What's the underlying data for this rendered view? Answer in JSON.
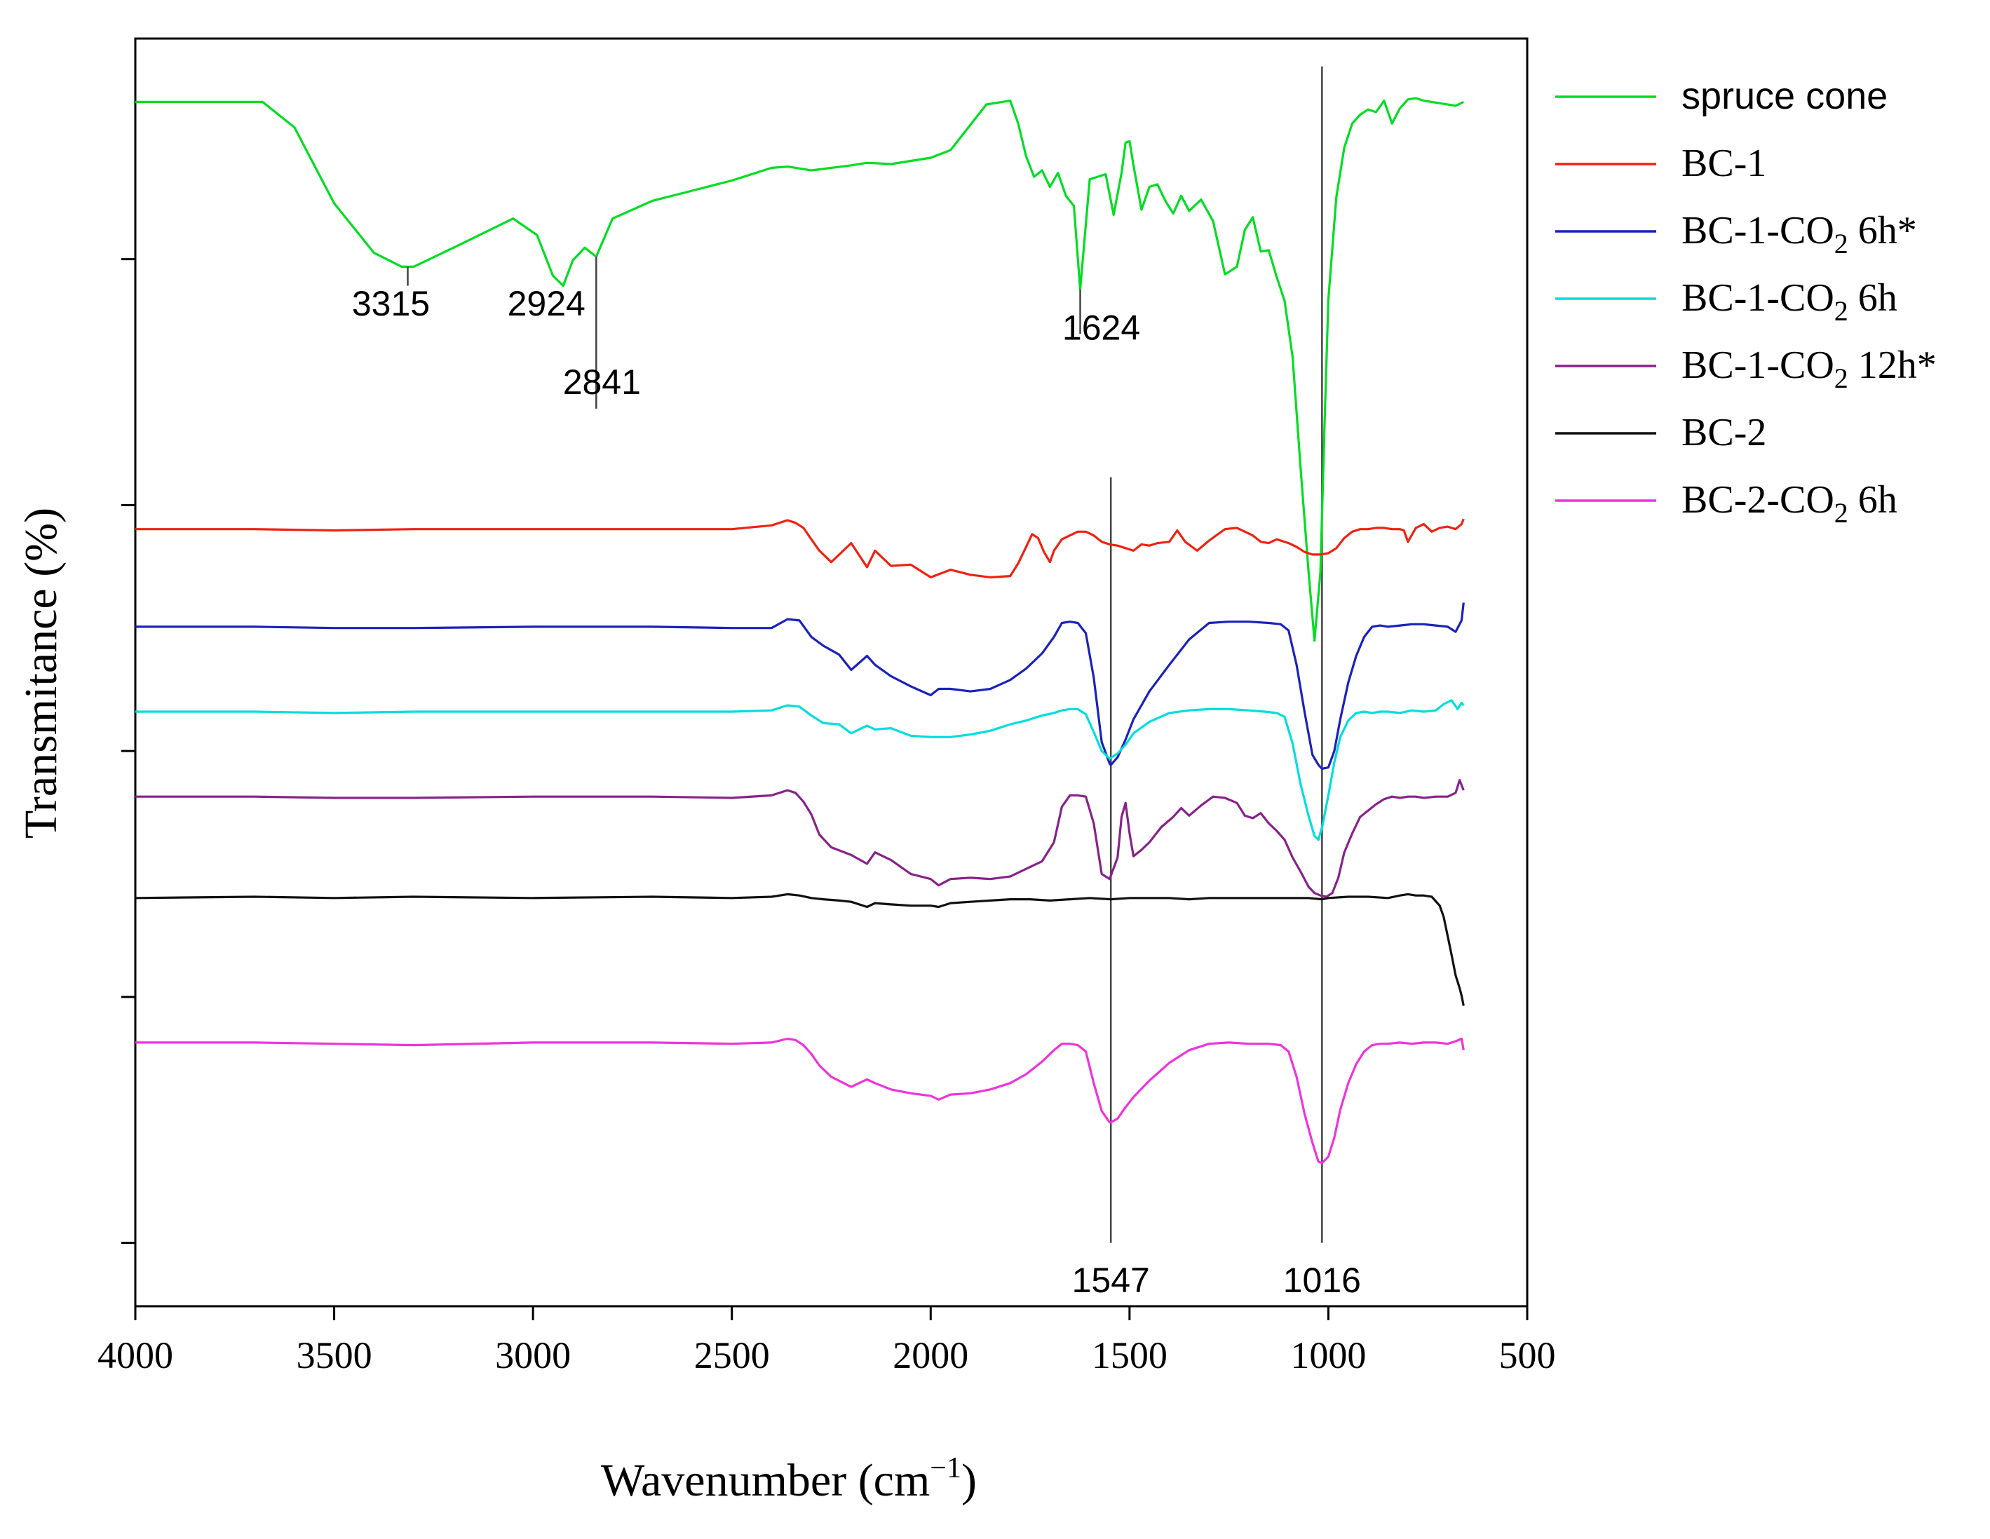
{
  "chart_data": {
    "type": "line",
    "title": "",
    "xlabel": "Wavenumber (cm",
    "xlabel_sup": "−1",
    "xlabel_close": ")",
    "ylabel": "Transmitance (%)",
    "xlim": [
      4000,
      500
    ],
    "x_reversed": true,
    "x_ticks": [
      4000,
      3500,
      3000,
      2500,
      2000,
      1500,
      1000,
      500
    ],
    "x_tick_labels": [
      "4000",
      "3500",
      "3000",
      "2500",
      "2000",
      "1500",
      "1000",
      "500"
    ],
    "y_units": "arbitrary (stacked, offset)",
    "ylim": [
      0,
      100
    ],
    "y_ticks": [
      5,
      24.4,
      43.8,
      63.2,
      82.6,
      102
    ],
    "grid": false,
    "legend_position": "top-right",
    "series": [
      {
        "name": "spruce cone",
        "name_parts": {
          "main": "spruce cone",
          "sub": "",
          "suffix": ""
        },
        "color": "#00dd22",
        "x": [
          4000,
          3680,
          3600,
          3500,
          3400,
          3330,
          3300,
          3200,
          3050,
          2990,
          2950,
          2924,
          2900,
          2870,
          2841,
          2800,
          2700,
          2600,
          2500,
          2400,
          2360,
          2300,
          2200,
          2160,
          2100,
          2000,
          1950,
          1860,
          1800,
          1780,
          1760,
          1740,
          1720,
          1700,
          1680,
          1660,
          1640,
          1624,
          1600,
          1580,
          1560,
          1540,
          1520,
          1510,
          1500,
          1490,
          1470,
          1450,
          1430,
          1410,
          1390,
          1370,
          1350,
          1320,
          1290,
          1260,
          1230,
          1210,
          1190,
          1170,
          1150,
          1130,
          1110,
          1090,
          1070,
          1050,
          1035,
          1020,
          1010,
          1000,
          980,
          960,
          940,
          920,
          900,
          880,
          860,
          850,
          840,
          820,
          800,
          780,
          760,
          720,
          680,
          660
        ],
        "y": [
          95,
          95,
          93,
          87,
          83.1,
          82,
          82,
          83.5,
          85.8,
          84.5,
          81.3,
          80.5,
          82.5,
          83.5,
          82.8,
          85.8,
          87.2,
          88,
          88.8,
          89.8,
          89.9,
          89.6,
          90,
          90.2,
          90.1,
          90.6,
          91.2,
          94.8,
          95.1,
          93.3,
          90.7,
          89.1,
          89.6,
          88.3,
          89.4,
          87.6,
          86.8,
          80.2,
          88.9,
          89.1,
          89.3,
          86.1,
          89.4,
          91.8,
          91.9,
          90,
          86.5,
          88.3,
          88.5,
          87.2,
          86.2,
          87.6,
          86.4,
          87.3,
          85.6,
          81.4,
          82,
          84.9,
          85.9,
          83.2,
          83.3,
          81.2,
          79.3,
          74.9,
          66.2,
          58,
          52.5,
          57.9,
          69.2,
          79.4,
          87.5,
          91.4,
          93.3,
          94,
          94.4,
          94.2,
          95.1,
          94.2,
          93.3,
          94.5,
          95.2,
          95.3,
          95.1,
          94.9,
          94.7,
          95
        ]
      },
      {
        "name": "BC-1",
        "name_parts": {
          "main": "BC-1",
          "sub": "",
          "suffix": ""
        },
        "color": "#ee2211",
        "x": [
          4000,
          3700,
          3500,
          3300,
          3000,
          2700,
          2500,
          2400,
          2360,
          2340,
          2320,
          2300,
          2280,
          2250,
          2200,
          2160,
          2140,
          2100,
          2050,
          2000,
          1950,
          1900,
          1850,
          1800,
          1780,
          1760,
          1745,
          1730,
          1715,
          1700,
          1690,
          1670,
          1650,
          1630,
          1610,
          1590,
          1570,
          1550,
          1530,
          1510,
          1490,
          1470,
          1450,
          1430,
          1400,
          1380,
          1360,
          1330,
          1300,
          1260,
          1230,
          1210,
          1190,
          1170,
          1150,
          1130,
          1100,
          1080,
          1060,
          1040,
          1020,
          1000,
          980,
          960,
          940,
          920,
          900,
          880,
          860,
          840,
          820,
          810,
          800,
          780,
          760,
          740,
          720,
          700,
          680,
          665,
          660
        ],
        "y": [
          61.3,
          61.3,
          61.2,
          61.3,
          61.3,
          61.3,
          61.3,
          61.6,
          62,
          61.8,
          61.4,
          60.5,
          59.6,
          58.7,
          60.2,
          58.3,
          59.6,
          58.4,
          58.5,
          57.5,
          58.1,
          57.7,
          57.5,
          57.6,
          58.6,
          59.9,
          60.9,
          60.6,
          59.5,
          58.7,
          59.6,
          60.5,
          60.8,
          61.1,
          61.1,
          60.8,
          60.3,
          60.1,
          60,
          59.8,
          59.6,
          60.1,
          60,
          60.2,
          60.3,
          61.2,
          60.3,
          59.6,
          60.4,
          61.3,
          61.4,
          61.1,
          60.8,
          60.3,
          60.2,
          60.5,
          60.2,
          59.9,
          59.5,
          59.3,
          59.3,
          59.4,
          59.8,
          60.6,
          61.1,
          61.3,
          61.3,
          61.4,
          61.4,
          61.3,
          61.3,
          61.2,
          60.3,
          61.4,
          61.7,
          61.1,
          61.4,
          61.5,
          61.3,
          61.7,
          62.1
        ]
      },
      {
        "name": "BC-1-CO2 6h*",
        "name_parts": {
          "main": "BC-1-CO",
          "sub": "2",
          "suffix": " 6h*"
        },
        "color": "#1a22bb",
        "x": [
          4000,
          3700,
          3500,
          3300,
          3000,
          2700,
          2500,
          2400,
          2360,
          2330,
          2300,
          2270,
          2230,
          2200,
          2160,
          2140,
          2100,
          2050,
          2000,
          1980,
          1950,
          1900,
          1850,
          1800,
          1760,
          1720,
          1690,
          1670,
          1650,
          1630,
          1610,
          1590,
          1570,
          1550,
          1547,
          1530,
          1510,
          1490,
          1450,
          1400,
          1350,
          1300,
          1250,
          1200,
          1150,
          1120,
          1100,
          1080,
          1060,
          1040,
          1025,
          1016,
          1000,
          985,
          970,
          950,
          930,
          910,
          890,
          870,
          850,
          820,
          790,
          760,
          730,
          700,
          680,
          665,
          660
        ],
        "y": [
          53.6,
          53.6,
          53.5,
          53.5,
          53.6,
          53.6,
          53.5,
          53.5,
          54.2,
          54.1,
          52.8,
          52.1,
          51.4,
          50.2,
          51.3,
          50.6,
          49.7,
          48.9,
          48.2,
          48.7,
          48.7,
          48.5,
          48.7,
          49.4,
          50.3,
          51.5,
          52.8,
          53.9,
          54,
          53.9,
          53.1,
          49.6,
          44.5,
          42.8,
          42.7,
          43.3,
          44.7,
          46.3,
          48.5,
          50.6,
          52.6,
          53.9,
          54,
          54,
          53.9,
          53.8,
          53.3,
          50.6,
          46.9,
          43.5,
          42.7,
          42.4,
          42.5,
          43.8,
          46.3,
          49.2,
          51.3,
          52.8,
          53.6,
          53.7,
          53.6,
          53.7,
          53.8,
          53.8,
          53.7,
          53.6,
          53.2,
          54.1,
          55.5
        ]
      },
      {
        "name": "BC-1-CO2 6h",
        "name_parts": {
          "main": "BC-1-CO",
          "sub": "2",
          "suffix": " 6h"
        },
        "color": "#00dddd",
        "x": [
          4000,
          3700,
          3500,
          3300,
          3000,
          2700,
          2500,
          2400,
          2360,
          2330,
          2300,
          2270,
          2230,
          2200,
          2160,
          2140,
          2100,
          2050,
          2000,
          1950,
          1900,
          1850,
          1800,
          1760,
          1720,
          1690,
          1670,
          1650,
          1630,
          1610,
          1590,
          1570,
          1550,
          1530,
          1510,
          1490,
          1450,
          1400,
          1350,
          1300,
          1250,
          1200,
          1160,
          1130,
          1110,
          1090,
          1070,
          1050,
          1035,
          1025,
          1015,
          1000,
          985,
          970,
          950,
          930,
          910,
          890,
          870,
          850,
          820,
          790,
          760,
          730,
          710,
          690,
          675,
          665,
          660
        ],
        "y": [
          46.9,
          46.9,
          46.8,
          46.9,
          46.9,
          46.9,
          46.9,
          47,
          47.4,
          47.3,
          46.6,
          46,
          45.9,
          45.2,
          45.8,
          45.5,
          45.6,
          45,
          44.9,
          44.9,
          45.1,
          45.4,
          45.9,
          46.2,
          46.6,
          46.8,
          47,
          47.1,
          47.1,
          46.7,
          45.3,
          43.8,
          43.2,
          43.6,
          44.3,
          45.2,
          46.1,
          46.8,
          47,
          47.1,
          47.1,
          47,
          46.9,
          46.8,
          46.5,
          44.4,
          41.2,
          38.7,
          37.1,
          36.8,
          37.9,
          40.3,
          42.9,
          44.9,
          46.2,
          46.8,
          46.9,
          46.8,
          46.9,
          46.9,
          46.8,
          47,
          46.9,
          47,
          47.5,
          47.8,
          47.1,
          47.6,
          47.4
        ]
      },
      {
        "name": "BC-1-CO2 12h*",
        "name_parts": {
          "main": "BC-1-CO",
          "sub": "2",
          "suffix": " 12h*"
        },
        "color": "#882288",
        "x": [
          4000,
          3700,
          3500,
          3300,
          3000,
          2700,
          2500,
          2400,
          2360,
          2340,
          2320,
          2300,
          2280,
          2250,
          2200,
          2160,
          2140,
          2100,
          2050,
          2000,
          1980,
          1950,
          1900,
          1850,
          1800,
          1760,
          1720,
          1690,
          1670,
          1650,
          1630,
          1610,
          1590,
          1570,
          1550,
          1530,
          1520,
          1510,
          1500,
          1490,
          1470,
          1450,
          1420,
          1390,
          1370,
          1350,
          1320,
          1290,
          1260,
          1230,
          1210,
          1190,
          1170,
          1150,
          1130,
          1110,
          1090,
          1070,
          1050,
          1035,
          1020,
          1005,
          990,
          975,
          960,
          940,
          920,
          900,
          880,
          860,
          840,
          820,
          800,
          780,
          760,
          730,
          700,
          680,
          670,
          660
        ],
        "y": [
          40.2,
          40.2,
          40.1,
          40.1,
          40.2,
          40.2,
          40.1,
          40.3,
          40.7,
          40.5,
          39.8,
          38.8,
          37.2,
          36.2,
          35.6,
          34.9,
          35.8,
          35.2,
          34.1,
          33.7,
          33.2,
          33.7,
          33.8,
          33.7,
          33.9,
          34.5,
          35.1,
          36.6,
          39.4,
          40.3,
          40.3,
          40.2,
          38.1,
          34.1,
          33.7,
          35.4,
          38.6,
          39.7,
          37.3,
          35.5,
          36,
          36.6,
          37.8,
          38.6,
          39.3,
          38.7,
          39.5,
          40.2,
          40.1,
          39.7,
          38.7,
          38.5,
          38.9,
          38.1,
          37.5,
          36.8,
          35.4,
          34.3,
          33.1,
          32.6,
          32.4,
          32.3,
          32.6,
          33.8,
          35.8,
          37.3,
          38.6,
          39.1,
          39.6,
          40,
          40.2,
          40.1,
          40.2,
          40.2,
          40.1,
          40.2,
          40.2,
          40.5,
          41.5,
          40.7
        ]
      },
      {
        "name": "BC-2",
        "name_parts": {
          "main": "BC-2",
          "sub": "",
          "suffix": ""
        },
        "color": "#111111",
        "x": [
          4000,
          3700,
          3500,
          3300,
          3000,
          2700,
          2500,
          2400,
          2360,
          2330,
          2300,
          2270,
          2230,
          2200,
          2160,
          2140,
          2100,
          2050,
          2000,
          1980,
          1950,
          1900,
          1850,
          1800,
          1750,
          1700,
          1650,
          1600,
          1547,
          1500,
          1450,
          1400,
          1350,
          1300,
          1250,
          1200,
          1150,
          1100,
          1050,
          1016,
          1000,
          950,
          900,
          850,
          820,
          800,
          780,
          760,
          740,
          720,
          710,
          700,
          690,
          680,
          670,
          665,
          660
        ],
        "y": [
          32.2,
          32.3,
          32.2,
          32.3,
          32.2,
          32.3,
          32.2,
          32.3,
          32.5,
          32.4,
          32.2,
          32.1,
          32,
          31.9,
          31.5,
          31.8,
          31.7,
          31.6,
          31.6,
          31.5,
          31.8,
          31.9,
          32,
          32.1,
          32.1,
          32,
          32.1,
          32.2,
          32.1,
          32.2,
          32.2,
          32.2,
          32.1,
          32.2,
          32.2,
          32.2,
          32.2,
          32.2,
          32.2,
          32.1,
          32.2,
          32.3,
          32.3,
          32.2,
          32.4,
          32.5,
          32.4,
          32.4,
          32.3,
          31.6,
          30.7,
          29.2,
          27.7,
          26.1,
          25.1,
          24.5,
          23.7
        ]
      },
      {
        "name": "BC-2-CO2 6h",
        "name_parts": {
          "main": "BC-2-CO",
          "sub": "2",
          "suffix": " 6h"
        },
        "color": "#ee33dd",
        "x": [
          4000,
          3700,
          3500,
          3300,
          3000,
          2700,
          2500,
          2400,
          2360,
          2340,
          2320,
          2300,
          2280,
          2250,
          2200,
          2160,
          2140,
          2100,
          2050,
          2000,
          1980,
          1950,
          1900,
          1850,
          1800,
          1760,
          1720,
          1690,
          1670,
          1650,
          1630,
          1610,
          1590,
          1570,
          1550,
          1547,
          1530,
          1510,
          1490,
          1450,
          1400,
          1350,
          1300,
          1250,
          1200,
          1150,
          1120,
          1100,
          1080,
          1060,
          1040,
          1025,
          1016,
          1000,
          985,
          970,
          950,
          930,
          910,
          890,
          870,
          850,
          820,
          790,
          760,
          730,
          700,
          680,
          665,
          660
        ],
        "y": [
          20.8,
          20.8,
          20.7,
          20.6,
          20.8,
          20.8,
          20.7,
          20.8,
          21.1,
          21,
          20.6,
          19.9,
          19,
          18.1,
          17.3,
          17.9,
          17.6,
          17.1,
          16.8,
          16.6,
          16.3,
          16.7,
          16.8,
          17.1,
          17.6,
          18.3,
          19.3,
          20.2,
          20.7,
          20.7,
          20.6,
          20.1,
          17.6,
          15.4,
          14.5,
          14.5,
          14.8,
          15.7,
          16.5,
          17.8,
          19.2,
          20.2,
          20.7,
          20.8,
          20.7,
          20.7,
          20.6,
          20.1,
          18.1,
          15.2,
          12.9,
          11.4,
          11.3,
          11.8,
          13.3,
          15.5,
          17.6,
          19.1,
          20.1,
          20.6,
          20.7,
          20.7,
          20.8,
          20.7,
          20.8,
          20.8,
          20.7,
          20.9,
          21.1,
          20.2
        ]
      }
    ],
    "annotations": [
      {
        "label": "3315",
        "x": 3315,
        "series": "spruce cone",
        "line_to_y": 80.5,
        "label_y": 78.6
      },
      {
        "label": "2924",
        "x": 2924,
        "series": "spruce cone",
        "line_to_y": 80.5,
        "label_y": 78.6
      },
      {
        "label": "2841",
        "x": 2841,
        "series": "spruce cone",
        "line_to_y": 70.8,
        "label_y": 72.4
      },
      {
        "label": "1624",
        "x": 1624,
        "series": "spruce cone",
        "line_to_y": 76.7,
        "label_y": 76.7
      }
    ],
    "reference_lines": [
      {
        "label": "1547",
        "x": 1547,
        "y_from": 65.4,
        "y_to": 5.0,
        "label_y": 2.2
      },
      {
        "label": "1016",
        "x": 1016,
        "y_from": 97.8,
        "y_to": 5.0,
        "label_y": 2.2
      }
    ]
  }
}
